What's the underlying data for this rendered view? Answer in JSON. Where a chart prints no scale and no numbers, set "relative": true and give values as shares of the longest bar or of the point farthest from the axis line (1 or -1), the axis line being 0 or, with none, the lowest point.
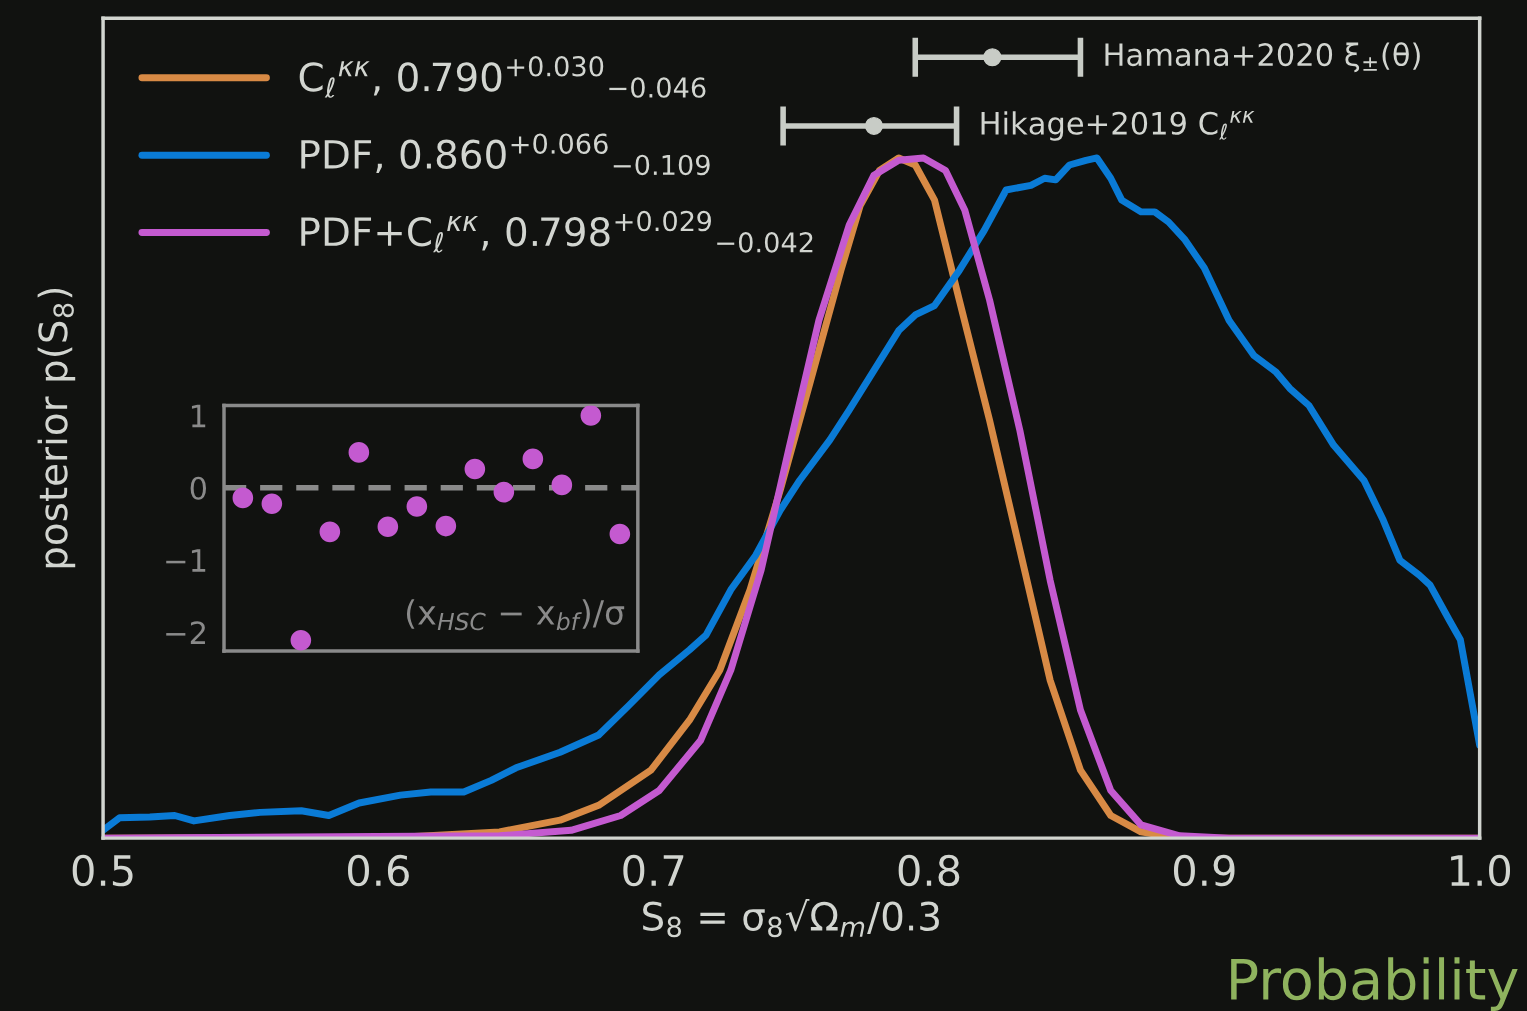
{
  "chart_data": [
    {
      "type": "line",
      "relative": true,
      "xlabel": "S$_{8}$ = σ$_{8}$√Ω$_{m}$/0.3",
      "ylabel": "posterior p(S$_{8}$)",
      "xlim": [
        0.5,
        1.0
      ],
      "xticks": [
        0.5,
        0.6,
        0.7,
        0.8,
        0.9,
        {
          "value": 1.0,
          "label": "1.0"
        }
      ],
      "legend": "top left",
      "grid": false,
      "annotations": [
        "Probability",
        {
          "text": "Hamana+2020 ξ$_{±}$(θ)",
          "x": 0.855,
          "y": 1.0
        },
        {
          "text": "Hikage+2019 C$_{ℓ}$$^{κκ}$",
          "x": 0.81,
          "y": 0.912
        }
      ],
      "series": [
        {
          "name": "C$_{ℓ}$$^{κκ}$, 0.790$^{+0.030}$$_{−0.046}$",
          "color": "#d88a45",
          "x": [
            0.5,
            0.608,
            0.644,
            0.666,
            0.68,
            0.699,
            0.713,
            0.724,
            0.735,
            0.746,
            0.757,
            0.768,
            0.775,
            0.782,
            0.789,
            0.795,
            0.802,
            0.811,
            0.822,
            0.833,
            0.844,
            0.855,
            0.866,
            0.877,
            0.891,
            1.0
          ],
          "values": [
            0,
            0.001,
            0.008,
            0.023,
            0.042,
            0.087,
            0.151,
            0.215,
            0.318,
            0.446,
            0.586,
            0.727,
            0.81,
            0.855,
            0.871,
            0.862,
            0.817,
            0.689,
            0.535,
            0.369,
            0.202,
            0.087,
            0.029,
            0.008,
            0,
            0
          ]
        },
        {
          "name": "PDF, 0.860$^{+0.066}$$_{−0.109}$",
          "color": "#0a7bd6",
          "x": [
            0.5,
            0.506,
            0.517,
            0.526,
            0.533,
            0.546,
            0.557,
            0.572,
            0.582,
            0.593,
            0.608,
            0.619,
            0.631,
            0.641,
            0.65,
            0.666,
            0.68,
            0.691,
            0.702,
            0.713,
            0.719,
            0.728,
            0.737,
            0.746,
            0.753,
            0.764,
            0.771,
            0.78,
            0.789,
            0.795,
            0.802,
            0.811,
            0.82,
            0.828,
            0.831,
            0.837,
            0.842,
            0.846,
            0.851,
            0.857,
            0.861,
            0.866,
            0.87,
            0.877,
            0.882,
            0.887,
            0.893,
            0.9,
            0.909,
            0.918,
            0.926,
            0.931,
            0.938,
            0.947,
            0.958,
            0.965,
            0.971,
            0.978,
            0.982,
            0.989,
            0.993,
            1.0
          ],
          "values": [
            0.01,
            0.026,
            0.027,
            0.029,
            0.022,
            0.029,
            0.033,
            0.035,
            0.029,
            0.045,
            0.055,
            0.059,
            0.059,
            0.074,
            0.09,
            0.11,
            0.132,
            0.17,
            0.209,
            0.241,
            0.26,
            0.318,
            0.362,
            0.42,
            0.458,
            0.51,
            0.548,
            0.599,
            0.65,
            0.67,
            0.682,
            0.727,
            0.778,
            0.83,
            0.832,
            0.836,
            0.845,
            0.843,
            0.862,
            0.868,
            0.871,
            0.845,
            0.817,
            0.802,
            0.802,
            0.789,
            0.766,
            0.73,
            0.663,
            0.618,
            0.597,
            0.576,
            0.554,
            0.503,
            0.458,
            0.407,
            0.356,
            0.337,
            0.324,
            0.279,
            0.254,
            0.119
          ]
        },
        {
          "name": "PDF+C$_{ℓ}$$^{κκ}$, 0.798$^{+0.029}$$_{−0.042}$",
          "color": "#c45ad0",
          "x": [
            0.5,
            0.644,
            0.67,
            0.688,
            0.702,
            0.717,
            0.728,
            0.739,
            0.749,
            0.76,
            0.771,
            0.78,
            0.789,
            0.798,
            0.806,
            0.813,
            0.822,
            0.833,
            0.844,
            0.855,
            0.866,
            0.877,
            0.891,
            0.909,
            1.0
          ],
          "values": [
            0,
            0.003,
            0.01,
            0.029,
            0.061,
            0.125,
            0.215,
            0.343,
            0.497,
            0.663,
            0.785,
            0.849,
            0.868,
            0.871,
            0.855,
            0.804,
            0.689,
            0.522,
            0.33,
            0.164,
            0.061,
            0.017,
            0.003,
            0,
            0
          ]
        },
        {
          "type": "scatter",
          "color": "#c8ccc6",
          "x": [
            0.823
          ],
          "values": [
            1.0
          ],
          "xerrors": [
            [
              0.795,
              0.855
            ]
          ]
        },
        {
          "type": "scatter",
          "color": "#c8ccc6",
          "x": [
            0.78
          ],
          "values": [
            0.912
          ],
          "xerrors": [
            [
              0.747,
              0.81
            ]
          ]
        }
      ]
    },
    {
      "type": "scatter",
      "categories": [
        null,
        null,
        null,
        null,
        null,
        null,
        null,
        null,
        null,
        null,
        null,
        null,
        null,
        null
      ],
      "ylim": [
        -2.26,
        1.14
      ],
      "yticks": [
        -2,
        -1,
        0,
        1
      ],
      "tick_labels": "y",
      "marker": "circle",
      "annotations": [
        "(x$_{HSC}$ − x$_{bf}$)/σ"
      ],
      "ref_lines": [
        {
          "axis": "y",
          "value": 0,
          "line_style": "dashed",
          "color": "#8a8a8a"
        }
      ],
      "series": [
        {
          "color": "#c45ad0",
          "values": [
            -0.14,
            -0.22,
            -2.11,
            -0.61,
            0.49,
            -0.54,
            -0.26,
            -0.53,
            0.26,
            -0.06,
            0.4,
            0.04,
            1.0,
            -0.64
          ]
        }
      ]
    }
  ]
}
